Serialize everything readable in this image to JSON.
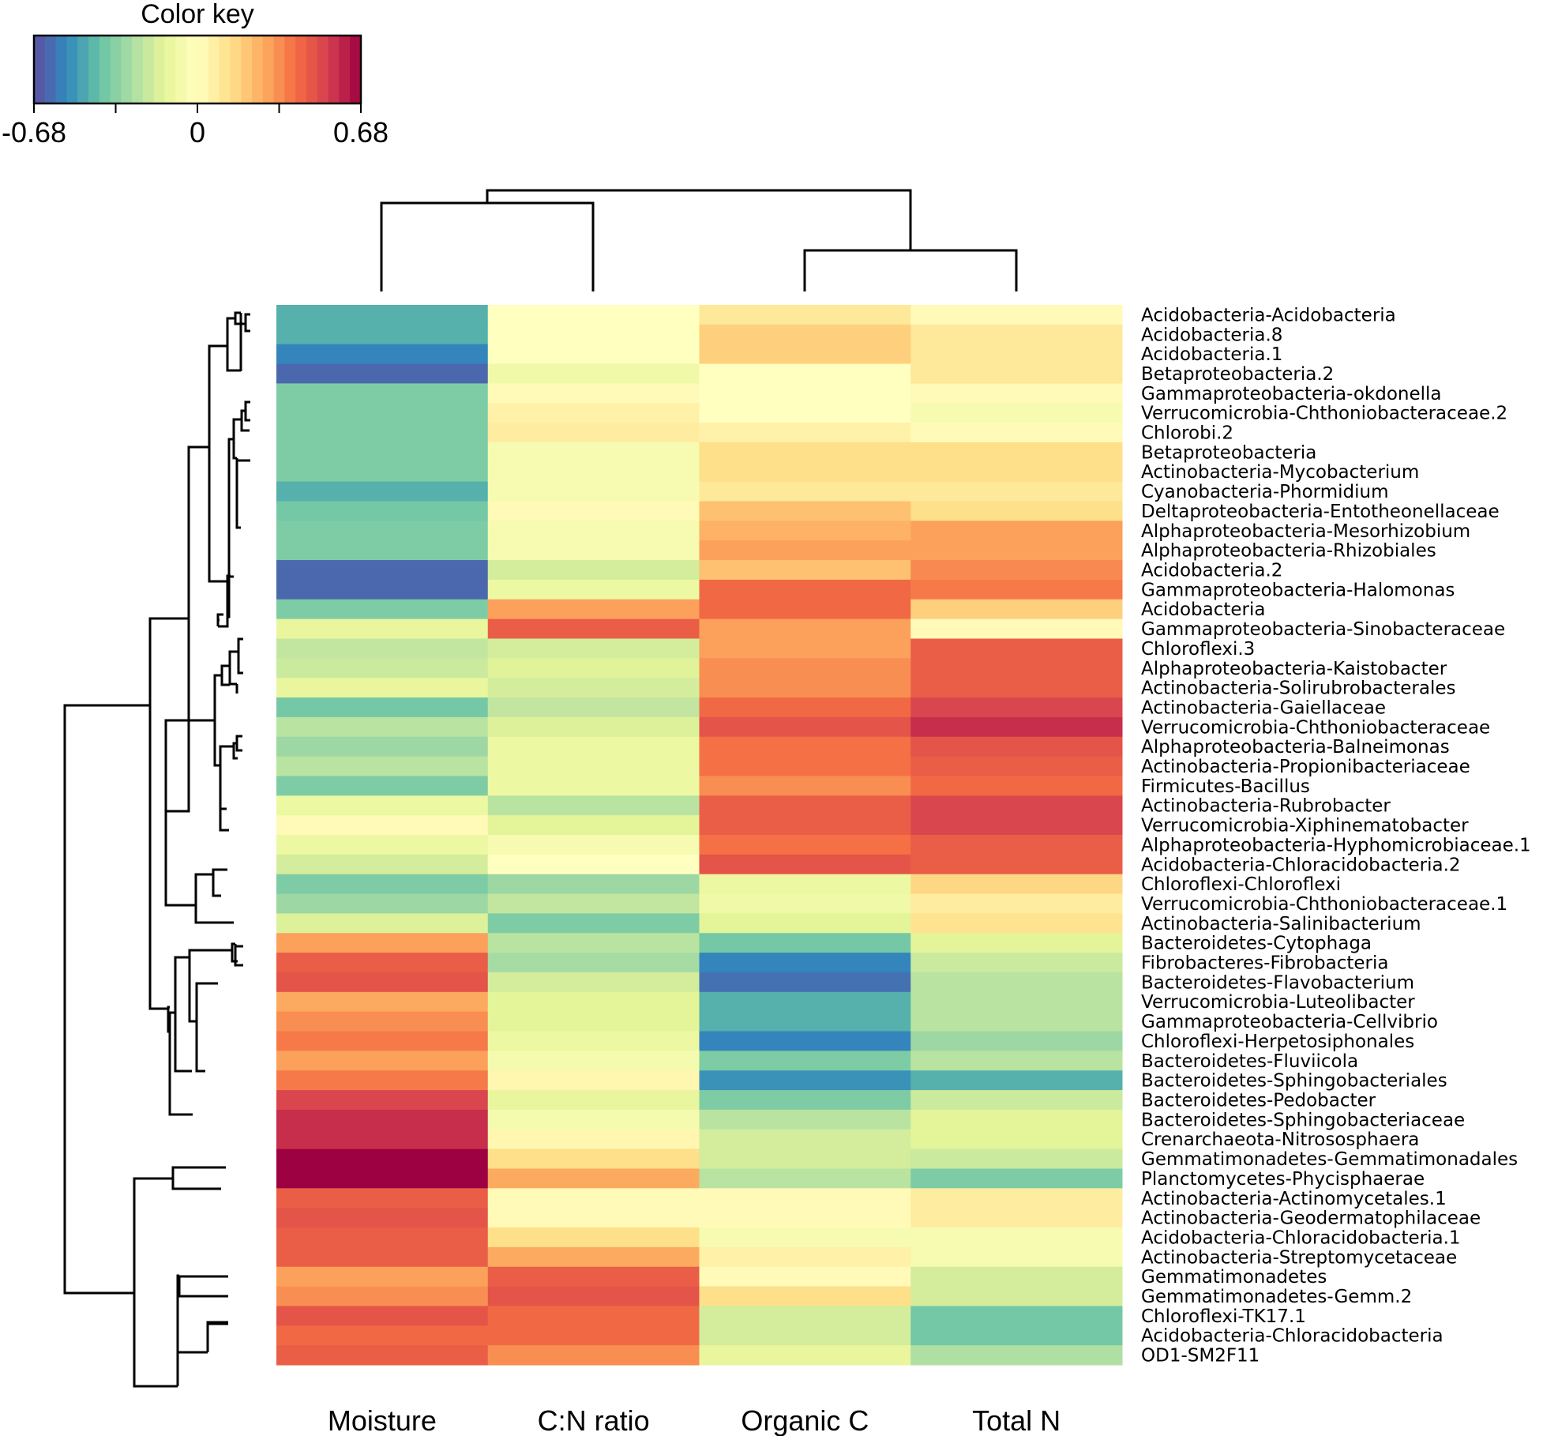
{
  "chart_data": {
    "type": "heatmap",
    "color_key": {
      "title": "Color key",
      "min": -0.68,
      "max": 0.68,
      "tick_labels": [
        "-0.68",
        "0",
        "0.68"
      ],
      "palette": [
        "#5e4fa2",
        "#3288bd",
        "#66c2a5",
        "#abdda4",
        "#e6f598",
        "#ffffbf",
        "#fee08b",
        "#fdae61",
        "#f46d43",
        "#d53e4f",
        "#9e0142"
      ]
    },
    "columns": [
      "Moisture",
      "C:N ratio",
      "Organic C",
      "Total N"
    ],
    "rows": [
      "Acidobacteria-Acidobacteria",
      "Acidobacteria.8",
      "Acidobacteria.1",
      "Betaproteobacteria.2",
      "Gammaproteobacteria-okdonella",
      "Verrucomicrobia-Chthoniobacteraceae.2",
      "Chlorobi.2",
      "Betaproteobacteria",
      "Actinobacteria-Mycobacterium",
      "Cyanobacteria-Phormidium",
      "Deltaproteobacteria-Entotheonellaceae",
      "Alphaproteobacteria-Mesorhizobium",
      "Alphaproteobacteria-Rhizobiales",
      "Acidobacteria.2",
      "Gammaproteobacteria-Halomonas",
      "Acidobacteria",
      "Gammaproteobacteria-Sinobacteraceae",
      "Chloroflexi.3",
      "Alphaproteobacteria-Kaistobacter",
      "Actinobacteria-Solirubrobacterales",
      "Actinobacteria-Gaiellaceae",
      "Verrucomicrobia-Chthoniobacteraceae",
      "Alphaproteobacteria-Balneimonas",
      "Actinobacteria-Propionibacteriaceae",
      "Firmicutes-Bacillus",
      "Actinobacteria-Rubrobacter",
      "Verrucomicrobia-Xiphinematobacter",
      "Alphaproteobacteria-Hyphomicrobiaceae.1",
      "Acidobacteria-Chloracidobacteria.2",
      "Chloroflexi-Chloroflexi",
      "Verrucomicrobia-Chthoniobacteraceae.1",
      "Actinobacteria-Salinibacterium",
      "Bacteroidetes-Cytophaga",
      "Fibrobacteres-Fibrobacteria",
      "Bacteroidetes-Flavobacterium",
      "Verrucomicrobia-Luteolibacter",
      "Gammaproteobacteria-Cellvibrio",
      "Chloroflexi-Herpetosiphonales",
      "Bacteroidetes-Fluviicola",
      "Bacteroidetes-Sphingobacteriales",
      "Bacteroidetes-Pedobacter",
      "Bacteroidetes-Sphingobacteriaceae",
      "Crenarchaeota-Nitrososphaera",
      "Gemmatimonadetes-Gemmatimonadales",
      "Planctomycetes-Phycisphaerae",
      "Actinobacteria-Actinomycetales.1",
      "Actinobacteria-Geodermatophilaceae",
      "Acidobacteria-Chloracidobacteria.1",
      "Actinobacteria-Streptomycetaceae",
      "Gemmatimonadetes",
      "Gemmatimonadetes-Gemm.2",
      "Chloroflexi-TK17.1",
      "Acidobacteria-Chloracidobacteria",
      "OD1-SM2F11"
    ],
    "values": [
      [
        -0.45,
        0.0,
        0.1,
        0.02
      ],
      [
        -0.45,
        0.0,
        0.18,
        0.1
      ],
      [
        -0.55,
        0.0,
        0.18,
        0.1
      ],
      [
        -0.62,
        -0.08,
        0.0,
        0.1
      ],
      [
        -0.36,
        0.02,
        0.0,
        0.02
      ],
      [
        -0.36,
        0.06,
        0.0,
        -0.05
      ],
      [
        -0.36,
        0.08,
        0.06,
        0.02
      ],
      [
        -0.36,
        -0.05,
        0.14,
        0.14
      ],
      [
        -0.36,
        -0.05,
        0.14,
        0.14
      ],
      [
        -0.45,
        -0.05,
        0.1,
        0.1
      ],
      [
        -0.38,
        0.02,
        0.22,
        0.14
      ],
      [
        -0.36,
        -0.05,
        0.26,
        0.3
      ],
      [
        -0.36,
        -0.05,
        0.3,
        0.3
      ],
      [
        -0.62,
        -0.18,
        0.22,
        0.35
      ],
      [
        -0.62,
        -0.1,
        0.42,
        0.38
      ],
      [
        -0.36,
        0.3,
        0.42,
        0.18
      ],
      [
        -0.12,
        0.45,
        0.3,
        0.02
      ],
      [
        -0.22,
        -0.18,
        0.3,
        0.45
      ],
      [
        -0.2,
        -0.15,
        0.34,
        0.45
      ],
      [
        -0.12,
        -0.18,
        0.34,
        0.45
      ],
      [
        -0.38,
        -0.22,
        0.42,
        0.52
      ],
      [
        -0.24,
        -0.16,
        0.48,
        0.58
      ],
      [
        -0.3,
        -0.1,
        0.4,
        0.48
      ],
      [
        -0.24,
        -0.1,
        0.4,
        0.45
      ],
      [
        -0.36,
        -0.1,
        0.34,
        0.42
      ],
      [
        -0.1,
        -0.24,
        0.45,
        0.52
      ],
      [
        0.02,
        -0.14,
        0.45,
        0.52
      ],
      [
        -0.1,
        -0.05,
        0.4,
        0.45
      ],
      [
        -0.18,
        0.0,
        0.48,
        0.45
      ],
      [
        -0.36,
        -0.3,
        -0.1,
        0.16
      ],
      [
        -0.3,
        -0.22,
        -0.08,
        0.08
      ],
      [
        -0.16,
        -0.36,
        -0.14,
        0.12
      ],
      [
        0.3,
        -0.24,
        -0.38,
        -0.14
      ],
      [
        0.45,
        -0.28,
        -0.55,
        -0.2
      ],
      [
        0.48,
        -0.18,
        -0.6,
        -0.24
      ],
      [
        0.28,
        -0.14,
        -0.45,
        -0.24
      ],
      [
        0.34,
        -0.14,
        -0.45,
        -0.24
      ],
      [
        0.38,
        -0.1,
        -0.55,
        -0.3
      ],
      [
        0.3,
        -0.06,
        -0.36,
        -0.24
      ],
      [
        0.38,
        0.04,
        -0.52,
        -0.45
      ],
      [
        0.52,
        -0.12,
        -0.36,
        -0.2
      ],
      [
        0.58,
        -0.06,
        -0.24,
        -0.14
      ],
      [
        0.58,
        0.04,
        -0.18,
        -0.14
      ],
      [
        0.68,
        0.14,
        -0.18,
        -0.2
      ],
      [
        0.68,
        0.28,
        -0.24,
        -0.36
      ],
      [
        0.45,
        0.02,
        0.02,
        0.08
      ],
      [
        0.48,
        0.02,
        0.02,
        0.08
      ],
      [
        0.45,
        0.14,
        -0.05,
        -0.05
      ],
      [
        0.45,
        0.28,
        0.06,
        -0.05
      ],
      [
        0.3,
        0.45,
        0.02,
        -0.18
      ],
      [
        0.34,
        0.48,
        0.14,
        -0.18
      ],
      [
        0.48,
        0.42,
        -0.18,
        -0.38
      ],
      [
        0.42,
        0.42,
        -0.18,
        -0.38
      ],
      [
        0.45,
        0.34,
        -0.12,
        -0.26
      ]
    ],
    "dendrogram": {
      "columns": "((Moisture, C:N ratio), (Organic C, Total N))",
      "rows": "hierarchical clustering of 54 taxa"
    }
  }
}
